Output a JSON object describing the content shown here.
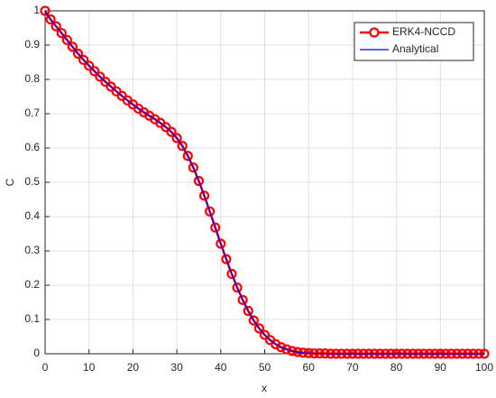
{
  "chart_data": {
    "type": "line",
    "xlabel": "x",
    "ylabel": "C",
    "x": [
      0,
      1.25,
      2.5,
      3.75,
      5,
      6.25,
      7.5,
      8.75,
      10,
      11.25,
      12.5,
      13.75,
      15,
      16.25,
      17.5,
      18.75,
      20,
      21.25,
      22.5,
      23.75,
      25,
      26.25,
      27.5,
      28.75,
      30,
      31.25,
      32.5,
      33.75,
      35,
      36.25,
      37.5,
      38.75,
      40,
      41.25,
      42.5,
      43.75,
      45,
      46.25,
      47.5,
      48.75,
      50,
      51.25,
      52.5,
      53.75,
      55,
      56.25,
      57.5,
      58.75,
      60,
      61.25,
      62.5,
      63.75,
      65,
      66.25,
      67.5,
      68.75,
      70,
      71.25,
      72.5,
      73.75,
      75,
      76.25,
      77.5,
      78.75,
      80,
      81.25,
      82.5,
      83.75,
      85,
      86.25,
      87.5,
      88.75,
      90,
      91.25,
      92.5,
      93.75,
      95,
      96.25,
      97.5,
      98.75,
      100
    ],
    "series": [
      {
        "name": "ERK4-NCCD",
        "color": "#ff0000",
        "marker": "circle",
        "values": [
          1.0,
          0.975,
          0.955,
          0.935,
          0.915,
          0.895,
          0.875,
          0.857,
          0.84,
          0.824,
          0.808,
          0.793,
          0.779,
          0.765,
          0.752,
          0.739,
          0.727,
          0.715,
          0.704,
          0.694,
          0.684,
          0.673,
          0.661,
          0.647,
          0.629,
          0.606,
          0.577,
          0.543,
          0.504,
          0.461,
          0.415,
          0.368,
          0.321,
          0.276,
          0.233,
          0.193,
          0.157,
          0.125,
          0.097,
          0.074,
          0.055,
          0.04,
          0.028,
          0.019,
          0.013,
          0.008,
          0.005,
          0.003,
          0.002,
          0.001,
          0.001,
          0.001,
          0,
          0,
          0,
          0,
          0,
          0,
          0,
          0,
          0,
          0,
          0,
          0,
          0,
          0,
          0,
          0,
          0,
          0,
          0,
          0,
          0,
          0,
          0,
          0,
          0,
          0,
          0,
          0,
          0
        ]
      },
      {
        "name": "Analytical",
        "color": "#0000ff",
        "values": [
          1.0,
          0.975,
          0.955,
          0.935,
          0.915,
          0.895,
          0.875,
          0.857,
          0.84,
          0.824,
          0.808,
          0.793,
          0.779,
          0.765,
          0.752,
          0.739,
          0.727,
          0.715,
          0.704,
          0.694,
          0.684,
          0.673,
          0.661,
          0.647,
          0.629,
          0.606,
          0.577,
          0.543,
          0.504,
          0.461,
          0.415,
          0.368,
          0.321,
          0.276,
          0.233,
          0.193,
          0.157,
          0.125,
          0.097,
          0.074,
          0.055,
          0.04,
          0.028,
          0.019,
          0.013,
          0.008,
          0.005,
          0.003,
          0.002,
          0.001,
          0.001,
          0.001,
          0,
          0,
          0,
          0,
          0,
          0,
          0,
          0,
          0,
          0,
          0,
          0,
          0,
          0,
          0,
          0,
          0,
          0,
          0,
          0,
          0,
          0,
          0,
          0,
          0,
          0,
          0,
          0,
          0
        ]
      }
    ],
    "xlim": [
      0,
      100
    ],
    "xticks": [
      0,
      10,
      20,
      30,
      40,
      50,
      60,
      70,
      80,
      90,
      100
    ],
    "ylim": [
      0,
      1
    ],
    "yticks": [
      0,
      0.1,
      0.2,
      0.3,
      0.4,
      0.5,
      0.6,
      0.7,
      0.8,
      0.9,
      1
    ],
    "grid": true,
    "legend": "upper right"
  }
}
